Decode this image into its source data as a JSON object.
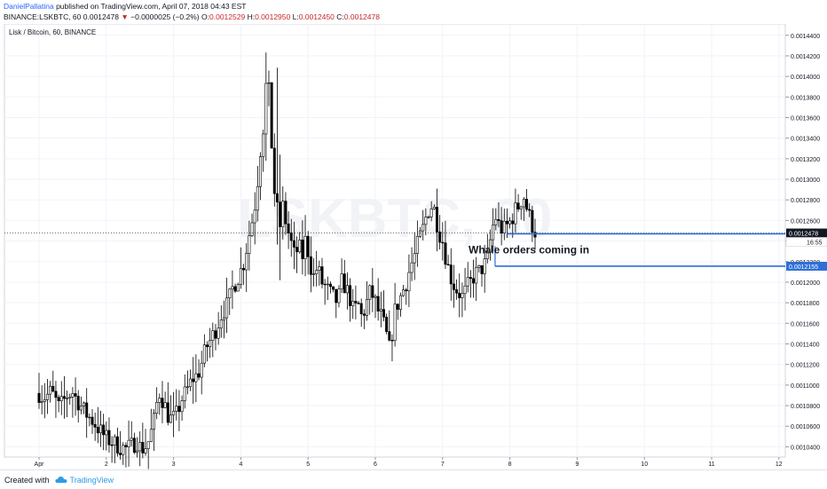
{
  "header": {
    "author": "DanielPallatina",
    "published_text": " published on TradingView.com, April 07, 2018 04:43 EST",
    "symbol_line": "BINANCE:LSKBTC, 60",
    "last_price": "0.0012478",
    "change_arrow": "▼",
    "change": "−0.0000025 (−0.2%)",
    "o_label": "O:",
    "o_value": "0.0012529",
    "h_label": "H:",
    "h_value": "0.0012950",
    "l_label": "L:",
    "l_value": "0.0012450",
    "c_label": "C:",
    "c_value": "0.0012478"
  },
  "footer": {
    "made_with": "Created with",
    "brand": "TradingView"
  },
  "colors": {
    "accent": "#2e6fd6",
    "price_label_bg": "#131722",
    "grid": "#f0f3fa",
    "candle_up": "#ffffff",
    "candle_down": "#000000"
  },
  "chart_data": {
    "type": "candlestick",
    "title": "Lisk / Bitcoin, 60, BINANCE",
    "watermark": "LSKBTC, 60",
    "x_tick_labels": [
      "Apr",
      "2",
      "3",
      "4",
      "5",
      "6",
      "7",
      "8",
      "9",
      "10",
      "11",
      "12"
    ],
    "y_tick_labels": [
      "0.0010400",
      "0.0010600",
      "0.0010800",
      "0.0011000",
      "0.0011200",
      "0.0011400",
      "0.0011600",
      "0.0011800",
      "0.0012000",
      "0.0012200",
      "0.0012400",
      "0.0012600",
      "0.0012800",
      "0.0013000",
      "0.0013200",
      "0.0013400",
      "0.0013600",
      "0.0013800",
      "0.0014000",
      "0.0014200",
      "0.0014400"
    ],
    "ylim": [
      0.00103,
      0.001451
    ],
    "current_price": 0.0012478,
    "current_price_label": "0.0012478",
    "countdown_label": "16:55",
    "whale_line_price": 0.0012155,
    "whale_line_label": "0.0012155",
    "whale_upper_price": 0.001247,
    "annotation": "Whale orders coming in",
    "price_path_days": [
      0.0,
      0.06,
      0.12,
      0.18,
      0.24,
      0.3,
      0.36,
      0.42,
      0.5,
      0.56,
      0.62,
      0.7,
      0.8,
      0.9,
      1.0,
      1.1,
      1.2,
      1.3,
      1.4,
      1.45,
      1.5,
      1.56,
      1.62,
      1.7,
      1.78,
      1.86,
      1.92,
      1.98,
      2.05,
      2.12,
      2.2,
      2.28,
      2.36,
      2.42,
      2.48,
      2.56,
      2.64,
      2.72,
      2.8,
      2.88,
      2.96,
      3.04,
      3.12,
      3.2,
      3.26,
      3.32,
      3.38,
      3.44,
      3.5,
      3.56,
      3.62,
      3.68,
      3.74,
      3.8,
      3.86,
      3.92,
      3.97,
      4.02,
      4.08,
      4.14,
      4.2,
      4.26,
      4.32,
      4.38,
      4.44,
      4.5,
      4.56,
      4.62,
      4.68,
      4.74,
      4.8,
      4.86,
      4.92,
      4.98,
      5.04,
      5.1,
      5.16,
      5.22,
      5.28,
      5.34,
      5.4,
      5.46,
      5.52,
      5.58,
      5.64,
      5.7,
      5.76,
      5.82,
      5.88,
      5.94,
      6.0,
      6.06,
      6.12,
      6.18,
      6.24,
      6.3,
      6.36,
      6.42,
      6.48,
      6.54,
      6.6,
      6.66,
      6.72,
      6.78,
      6.84,
      6.9,
      6.96,
      7.02,
      7.08,
      7.14,
      7.2,
      7.26,
      7.31,
      7.36,
      7.4
    ],
    "price_path": [
      0.001092,
      0.001088,
      0.00109,
      0.001094,
      0.001086,
      0.001078,
      0.001084,
      0.00109,
      0.001093,
      0.001086,
      0.00108,
      0.001072,
      0.001065,
      0.001056,
      0.001048,
      0.001044,
      0.00104,
      0.001038,
      0.001042,
      0.001046,
      0.00104,
      0.001038,
      0.001044,
      0.001062,
      0.001094,
      0.001082,
      0.00107,
      0.001066,
      0.001072,
      0.001086,
      0.001095,
      0.001106,
      0.00111,
      0.001122,
      0.001136,
      0.001145,
      0.001156,
      0.00117,
      0.001178,
      0.001195,
      0.001205,
      0.001218,
      0.001245,
      0.00127,
      0.001305,
      0.00135,
      0.00139,
      0.00136,
      0.00129,
      0.001245,
      0.001275,
      0.001255,
      0.00124,
      0.001225,
      0.001235,
      0.001225,
      0.001245,
      0.00122,
      0.001205,
      0.001215,
      0.0012,
      0.001195,
      0.00119,
      0.001185,
      0.00118,
      0.0012,
      0.001195,
      0.001185,
      0.00117,
      0.00118,
      0.001165,
      0.001178,
      0.00119,
      0.001185,
      0.001172,
      0.001165,
      0.00115,
      0.001132,
      0.00117,
      0.00118,
      0.00119,
      0.0012,
      0.001215,
      0.001225,
      0.00124,
      0.00125,
      0.001265,
      0.001275,
      0.00127,
      0.00125,
      0.00124,
      0.00122,
      0.001205,
      0.001195,
      0.00119,
      0.001185,
      0.001195,
      0.0012,
      0.001208,
      0.00121,
      0.001215,
      0.00122,
      0.001245,
      0.001265,
      0.001255,
      0.00125,
      0.001255,
      0.00126,
      0.00127,
      0.001275,
      0.001285,
      0.00127,
      0.00126,
      0.00125,
      0.0012478
    ]
  }
}
